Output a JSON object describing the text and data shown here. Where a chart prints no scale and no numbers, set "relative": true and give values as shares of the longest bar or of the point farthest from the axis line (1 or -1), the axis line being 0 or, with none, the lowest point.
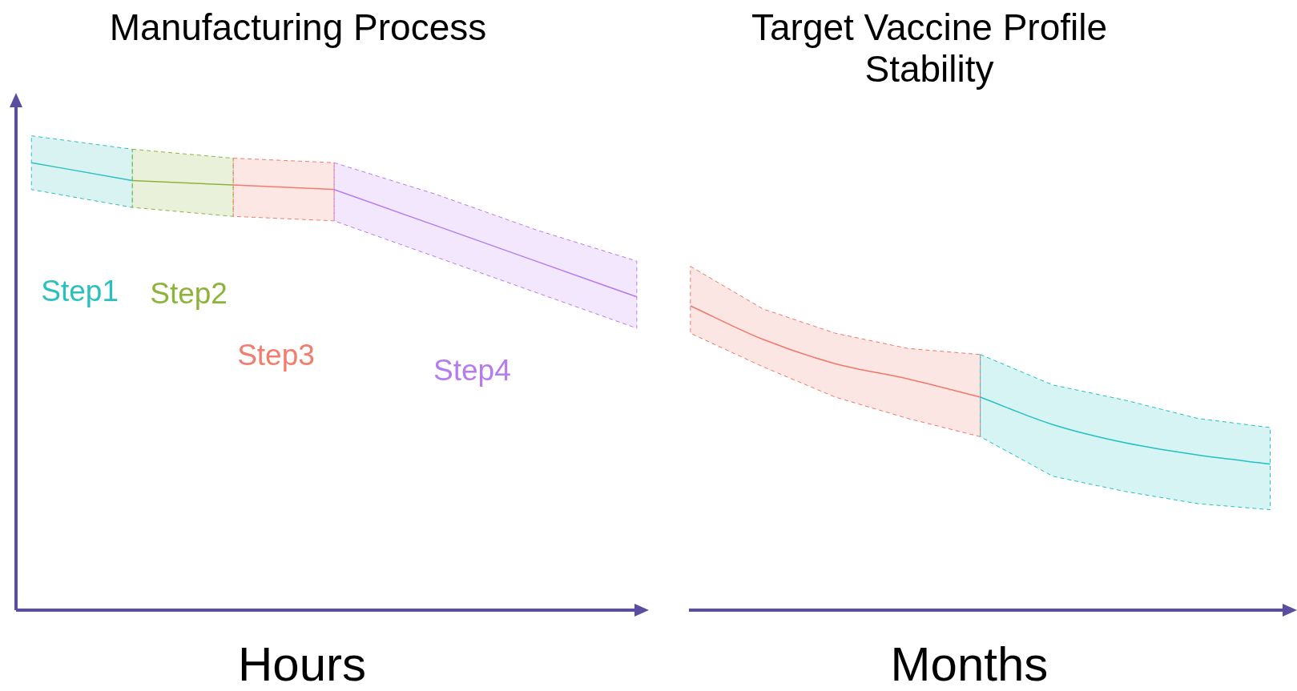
{
  "chart_data": [
    {
      "type": "line",
      "title": "Manufacturing Process",
      "xlabel": "Hours",
      "relative": true,
      "categories": [
        null,
        null,
        null,
        null,
        null,
        null,
        null
      ],
      "series": [
        {
          "name": "Step1",
          "color": "#2bbfbf",
          "values": [
            1,
            0.96,
            null,
            null,
            null,
            null,
            null
          ],
          "upper": [
            1.06,
            1.03,
            null,
            null,
            null,
            null,
            null
          ],
          "lower": [
            0.94,
            0.9,
            null,
            null,
            null,
            null,
            null
          ]
        },
        {
          "name": "Step2",
          "color": "#8db43a",
          "values": [
            null,
            0.96,
            0.95,
            null,
            null,
            null,
            null
          ],
          "upper": [
            null,
            1.03,
            1.01,
            null,
            null,
            null,
            null
          ],
          "lower": [
            null,
            0.9,
            0.88,
            null,
            null,
            null,
            null
          ]
        },
        {
          "name": "Step3",
          "color": "#f27c6e",
          "values": [
            null,
            null,
            0.95,
            0.94,
            null,
            null,
            null
          ],
          "upper": [
            null,
            null,
            1.01,
            1,
            null,
            null,
            null
          ],
          "lower": [
            null,
            null,
            0.88,
            0.87,
            null,
            null,
            null
          ]
        },
        {
          "name": "Step4",
          "color": "#b57cf0",
          "values": [
            null,
            null,
            null,
            0.94,
            0.86,
            0.78,
            0.7
          ],
          "upper": [
            null,
            null,
            null,
            1,
            0.93,
            0.85,
            0.78
          ],
          "lower": [
            null,
            null,
            null,
            0.87,
            0.79,
            0.71,
            0.63
          ]
        }
      ]
    },
    {
      "type": "line",
      "title": "Target Vaccine Profile Stability",
      "xlabel": "Months",
      "relative": true,
      "categories": [
        null,
        null,
        null,
        null,
        null,
        null,
        null,
        null,
        null
      ],
      "series": [
        {
          "color": "#f0776a",
          "values": [
            1,
            0.89,
            0.81,
            0.76,
            0.7,
            null,
            null,
            null,
            null
          ],
          "upper": [
            1.13,
            0.99,
            0.91,
            0.86,
            0.84,
            null,
            null,
            null,
            null
          ],
          "lower": [
            0.91,
            0.8,
            0.7,
            0.63,
            0.57,
            null,
            null,
            null,
            null
          ]
        },
        {
          "color": "#22c1c3",
          "values": [
            null,
            null,
            null,
            null,
            0.7,
            0.61,
            0.55,
            0.51,
            0.48
          ],
          "upper": [
            null,
            null,
            null,
            null,
            0.84,
            0.74,
            0.69,
            0.63,
            0.6
          ],
          "lower": [
            null,
            null,
            null,
            null,
            0.57,
            0.44,
            0.39,
            0.35,
            0.33
          ]
        }
      ]
    }
  ]
}
